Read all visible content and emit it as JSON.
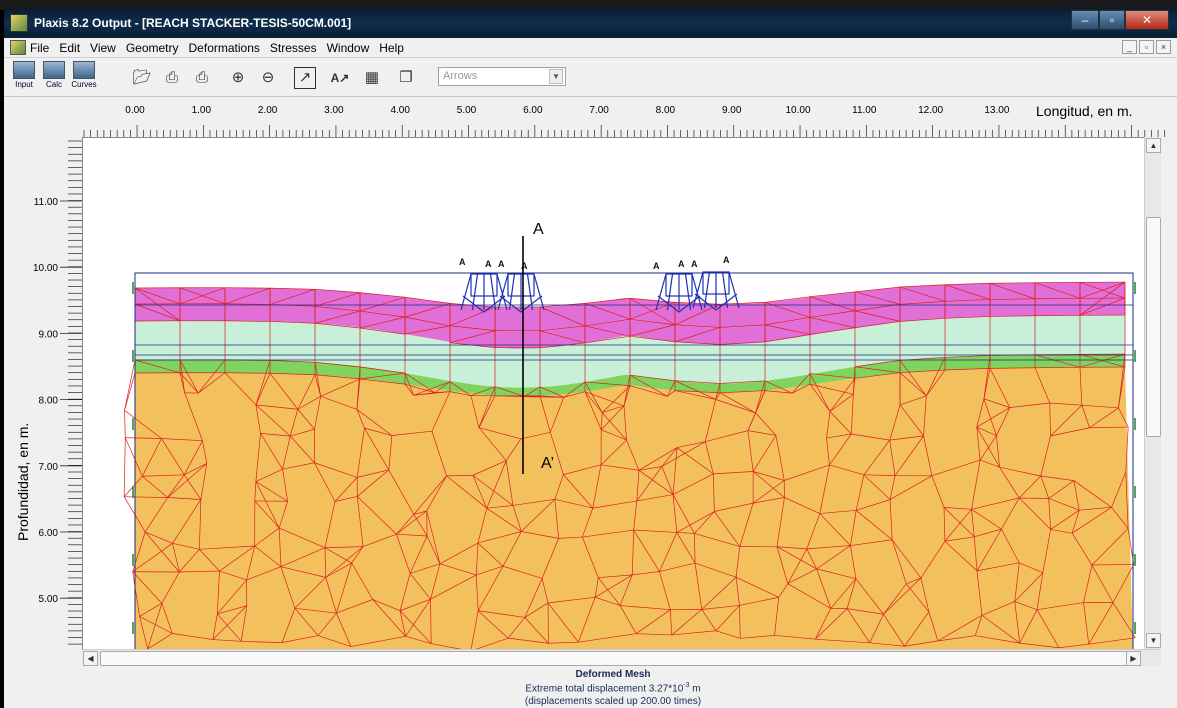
{
  "window": {
    "title": "Plaxis 8.2 Output - [REACH STACKER-TESIS-50CM.001]",
    "controls": {
      "minimize": "–",
      "maximize": "▫",
      "close": "✕"
    }
  },
  "menu": {
    "items": [
      "File",
      "Edit",
      "View",
      "Geometry",
      "Deformations",
      "Stresses",
      "Window",
      "Help"
    ],
    "mdi": [
      "_",
      "▫",
      "×"
    ]
  },
  "toolbar": {
    "program_buttons": [
      "Input",
      "Calc",
      "Curves"
    ],
    "display_select": {
      "value": "Arrows"
    }
  },
  "axes": {
    "x_title": "Longitud, en m.",
    "y_title": "Profundidad, en m.",
    "x_ticks": [
      "0.00",
      "1.00",
      "2.00",
      "3.00",
      "4.00",
      "5.00",
      "6.00",
      "7.00",
      "8.00",
      "9.00",
      "10.00",
      "11.00",
      "12.00",
      "13.00"
    ],
    "y_ticks": [
      "11.00",
      "10.00",
      "9.00",
      "8.00",
      "7.00",
      "6.00",
      "5.00"
    ]
  },
  "section": {
    "top_label": "A",
    "bottom_label": "A’",
    "load_labels": [
      "A",
      "A",
      "A",
      "A",
      "A",
      "A",
      "A",
      "A"
    ]
  },
  "colors": {
    "layer_top": "#e070d8",
    "layer_light": "#c8f0d8",
    "layer_green": "#7ed45c",
    "layer_base": "#f2c15e",
    "mesh": "#dd1e1e",
    "load": "#1c2fb8"
  },
  "caption": {
    "title": "Deformed Mesh",
    "line1_prefix": "Extreme total displacement 3.27*10",
    "line1_exp": "-3",
    "line1_suffix": " m",
    "line2": "(displacements scaled up 200.00 times)"
  }
}
